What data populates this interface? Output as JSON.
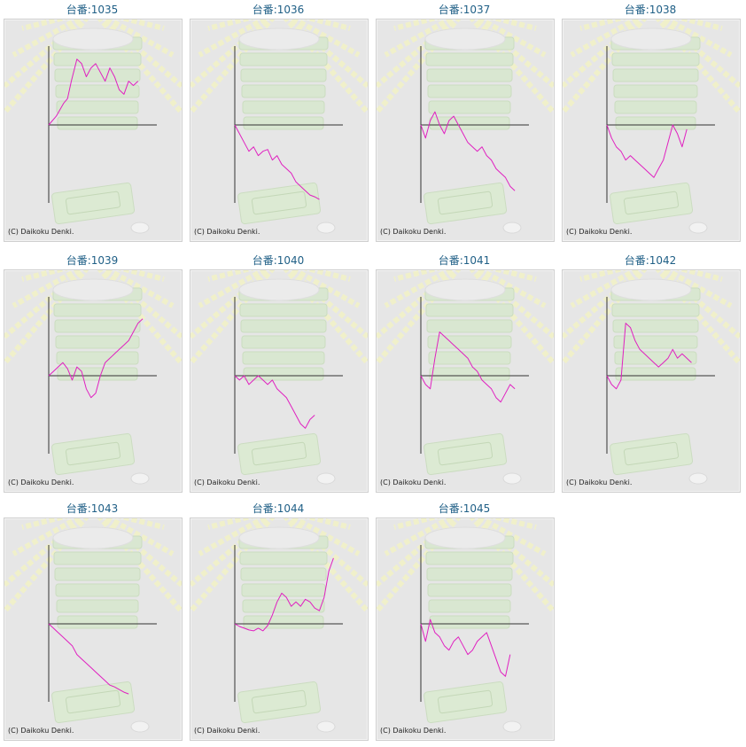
{
  "colors": {
    "line": "#e020c0",
    "axis": "#333333",
    "title": "#1f5f86",
    "background": "#e6e6e6"
  },
  "copyright": "(C) Daikoku Denki.",
  "charts": [
    {
      "label": "台番:1035"
    },
    {
      "label": "台番:1036"
    },
    {
      "label": "台番:1037"
    },
    {
      "label": "台番:1038"
    },
    {
      "label": "台番:1039"
    },
    {
      "label": "台番:1040"
    },
    {
      "label": "台番:1041"
    },
    {
      "label": "台番:1042"
    },
    {
      "label": "台番:1043"
    },
    {
      "label": "台番:1044"
    },
    {
      "label": "台番:1045"
    }
  ],
  "chart_data": [
    {
      "type": "line",
      "title": "台番:1035",
      "x": [
        0,
        8,
        16,
        20,
        24,
        30,
        35,
        40,
        45,
        50,
        55,
        60,
        65,
        70,
        75,
        80,
        85,
        90,
        95
      ],
      "y": [
        0,
        10,
        25,
        30,
        50,
        75,
        70,
        55,
        65,
        70,
        60,
        50,
        65,
        55,
        40,
        35,
        50,
        45,
        50
      ],
      "ylim": [
        -90,
        90
      ]
    },
    {
      "type": "line",
      "title": "台番:1036",
      "x": [
        0,
        5,
        10,
        15,
        20,
        25,
        30,
        35,
        40,
        45,
        50,
        55,
        60,
        65,
        70,
        75,
        80,
        85,
        90
      ],
      "y": [
        0,
        -10,
        -20,
        -30,
        -25,
        -35,
        -30,
        -28,
        -40,
        -35,
        -45,
        -50,
        -55,
        -65,
        -70,
        -75,
        -80,
        -82,
        -85
      ],
      "ylim": [
        -90,
        90
      ]
    },
    {
      "type": "line",
      "title": "台番:1037",
      "x": [
        0,
        5,
        10,
        15,
        20,
        25,
        30,
        35,
        40,
        45,
        50,
        55,
        60,
        65,
        70,
        75,
        80,
        85,
        90,
        95,
        100
      ],
      "y": [
        0,
        -15,
        5,
        15,
        0,
        -10,
        5,
        10,
        0,
        -10,
        -20,
        -25,
        -30,
        -25,
        -35,
        -40,
        -50,
        -55,
        -60,
        -70,
        -75
      ],
      "ylim": [
        -90,
        90
      ]
    },
    {
      "type": "line",
      "title": "台番:1038",
      "x": [
        0,
        5,
        10,
        15,
        20,
        25,
        30,
        35,
        40,
        45,
        50,
        55,
        60,
        65,
        70,
        75,
        80,
        85
      ],
      "y": [
        0,
        -15,
        -25,
        -30,
        -40,
        -35,
        -40,
        -45,
        -50,
        -55,
        -60,
        -50,
        -40,
        -20,
        0,
        -10,
        -25,
        -5
      ],
      "ylim": [
        -90,
        90
      ]
    },
    {
      "type": "line",
      "title": "台番:1039",
      "x": [
        0,
        5,
        10,
        15,
        20,
        25,
        30,
        35,
        40,
        45,
        50,
        55,
        60,
        65,
        70,
        75,
        80,
        85,
        90,
        95,
        100
      ],
      "y": [
        0,
        5,
        10,
        15,
        8,
        -5,
        10,
        5,
        -15,
        -25,
        -20,
        0,
        15,
        20,
        25,
        30,
        35,
        40,
        50,
        60,
        65
      ],
      "ylim": [
        -90,
        90
      ]
    },
    {
      "type": "line",
      "title": "台番:1040",
      "x": [
        0,
        5,
        10,
        15,
        20,
        25,
        30,
        35,
        40,
        45,
        50,
        55,
        60,
        65,
        70,
        75,
        80,
        85
      ],
      "y": [
        0,
        -5,
        0,
        -10,
        -5,
        0,
        -5,
        -10,
        -5,
        -15,
        -20,
        -25,
        -35,
        -45,
        -55,
        -60,
        -50,
        -45
      ],
      "ylim": [
        -90,
        90
      ]
    },
    {
      "type": "line",
      "title": "台番:1041",
      "x": [
        0,
        5,
        10,
        15,
        20,
        25,
        30,
        35,
        40,
        45,
        50,
        55,
        60,
        65,
        70,
        75,
        80,
        85,
        90,
        95,
        100
      ],
      "y": [
        0,
        -10,
        -15,
        20,
        50,
        45,
        40,
        35,
        30,
        25,
        20,
        10,
        5,
        -5,
        -10,
        -15,
        -25,
        -30,
        -20,
        -10,
        -15
      ],
      "ylim": [
        -90,
        90
      ]
    },
    {
      "type": "line",
      "title": "台番:1042",
      "x": [
        0,
        5,
        10,
        15,
        20,
        25,
        30,
        35,
        40,
        45,
        50,
        55,
        60,
        65,
        70,
        75,
        80,
        85,
        90
      ],
      "y": [
        0,
        -10,
        -15,
        -5,
        60,
        55,
        40,
        30,
        25,
        20,
        15,
        10,
        15,
        20,
        30,
        20,
        25,
        20,
        15
      ],
      "ylim": [
        -90,
        90
      ]
    },
    {
      "type": "line",
      "title": "台番:1043",
      "x": [
        0,
        5,
        10,
        15,
        20,
        25,
        30,
        35,
        40,
        45,
        50,
        55,
        60,
        65,
        70,
        75,
        80,
        85
      ],
      "y": [
        0,
        -5,
        -10,
        -15,
        -20,
        -25,
        -35,
        -40,
        -45,
        -50,
        -55,
        -60,
        -65,
        -70,
        -72,
        -75,
        -78,
        -80
      ],
      "ylim": [
        -90,
        90
      ]
    },
    {
      "type": "line",
      "title": "台番:1044",
      "x": [
        0,
        5,
        10,
        15,
        20,
        25,
        30,
        35,
        40,
        45,
        50,
        55,
        60,
        65,
        70,
        75,
        80,
        85,
        90,
        95,
        100,
        105
      ],
      "y": [
        0,
        -3,
        -5,
        -7,
        -8,
        -5,
        -8,
        -2,
        10,
        25,
        35,
        30,
        20,
        25,
        20,
        28,
        25,
        18,
        15,
        30,
        60,
        75
      ],
      "ylim": [
        -90,
        90
      ]
    },
    {
      "type": "line",
      "title": "台番:1045",
      "x": [
        0,
        5,
        10,
        15,
        20,
        25,
        30,
        35,
        40,
        45,
        50,
        55,
        60,
        65,
        70,
        75,
        80,
        85,
        90,
        95
      ],
      "y": [
        0,
        -20,
        5,
        -10,
        -15,
        -25,
        -30,
        -20,
        -15,
        -25,
        -35,
        -30,
        -20,
        -15,
        -10,
        -25,
        -40,
        -55,
        -60,
        -35
      ],
      "ylim": [
        -90,
        90
      ]
    }
  ]
}
